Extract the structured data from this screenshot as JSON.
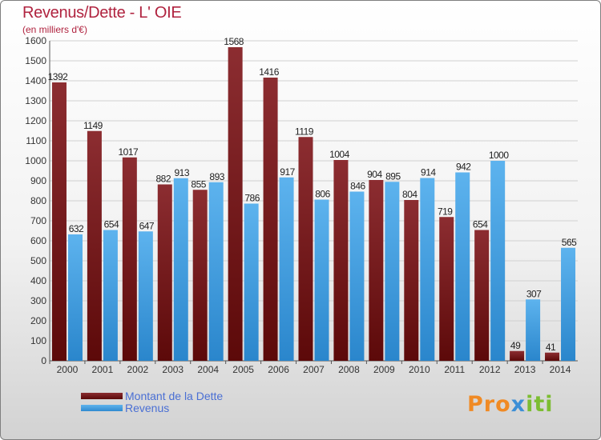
{
  "title": "Revenus/Dette - L' OIE",
  "subtitle": "(en milliers d'€)",
  "logo": {
    "p1": "Pro",
    "p2": "x",
    "p3": "iti"
  },
  "colors": {
    "debt": "#7a1c22",
    "revenue": "#3d9fe3",
    "title": "#b0233f",
    "legend_text": "#4a6fd4"
  },
  "chart_data": {
    "type": "bar",
    "categories": [
      "2000",
      "2001",
      "2002",
      "2003",
      "2004",
      "2005",
      "2006",
      "2007",
      "2008",
      "2009",
      "2010",
      "2011",
      "2012",
      "2013",
      "2014"
    ],
    "series": [
      {
        "name": "Montant de la Dette",
        "values": [
          1392,
          1149,
          1017,
          882,
          855,
          1568,
          1416,
          1119,
          1004,
          904,
          804,
          719,
          654,
          49,
          41
        ]
      },
      {
        "name": "Revenus",
        "values": [
          632,
          654,
          647,
          913,
          893,
          786,
          917,
          806,
          846,
          895,
          914,
          942,
          1000,
          307,
          565
        ]
      }
    ],
    "ylim": [
      0,
      1600
    ],
    "yticks": [
      0,
      100,
      200,
      300,
      400,
      500,
      600,
      700,
      800,
      900,
      1000,
      1100,
      1200,
      1300,
      1400,
      1500,
      1600
    ],
    "grid": true,
    "legend_position": "bottom-left"
  }
}
